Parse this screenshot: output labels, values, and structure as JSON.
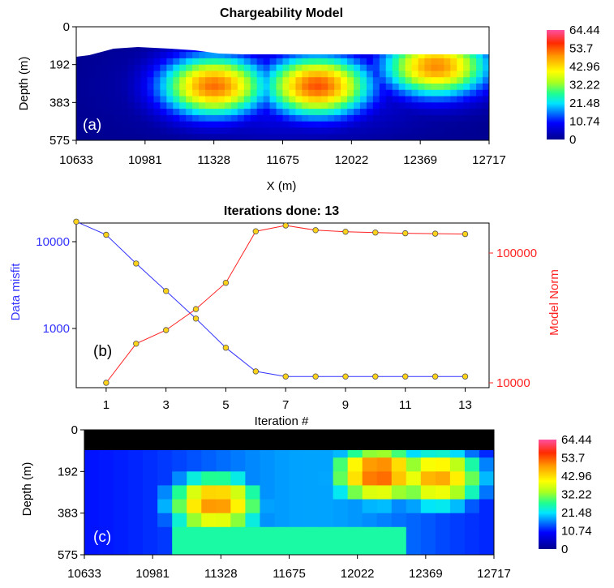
{
  "chart_data": [
    {
      "type": "heatmap",
      "panel_label": "(a)",
      "title": "Chargeability Model",
      "xlabel": "X (m)",
      "ylabel": "Depth (m)",
      "x_ticks": [
        "10633",
        "10981",
        "11328",
        "11675",
        "12022",
        "12369",
        "12717"
      ],
      "y_ticks": [
        "0",
        "192",
        "383",
        "575"
      ],
      "xlim": [
        10633,
        12717
      ],
      "ylim": [
        0,
        575
      ],
      "colorbar": {
        "ticks": [
          "64.44",
          "53.7",
          "42.96",
          "32.22",
          "21.48",
          "10.74",
          "0"
        ],
        "range": [
          0,
          64.44
        ]
      },
      "anomalies": [
        {
          "x": 11328,
          "depth": 300,
          "peak": 52
        },
        {
          "x": 11850,
          "depth": 300,
          "peak": 54
        },
        {
          "x": 12450,
          "depth": 200,
          "peak": 50
        }
      ]
    },
    {
      "type": "line",
      "panel_label": "(b)",
      "title": "Iterations done: 13",
      "xlabel": "Iteration #",
      "ylabel_left": "Data misfit",
      "ylabel_right": "Model Norm",
      "x_ticks": [
        "1",
        "3",
        "5",
        "7",
        "9",
        "11",
        "13"
      ],
      "y_ticks_left": [
        "10000",
        "1000"
      ],
      "y_ticks_right": [
        "100000",
        "10000"
      ],
      "y_scale": "log",
      "x": [
        0,
        1,
        2,
        3,
        4,
        5,
        6,
        7,
        8,
        9,
        10,
        11,
        12,
        13
      ],
      "series": [
        {
          "name": "Data misfit",
          "axis": "left",
          "color": "#3333ff",
          "values": [
            17000,
            12000,
            5600,
            2700,
            1300,
            600,
            320,
            280,
            280,
            280,
            280,
            280,
            280,
            280
          ]
        },
        {
          "name": "Model Norm",
          "axis": "right",
          "color": "#ff2222",
          "x": [
            1,
            2,
            3,
            4,
            5,
            6,
            7,
            8,
            9,
            10,
            11,
            12,
            13
          ],
          "values": [
            10000,
            20000,
            25500,
            37000,
            59000,
            147000,
            163000,
            150000,
            146000,
            144000,
            142000,
            141000,
            140000
          ]
        }
      ]
    },
    {
      "type": "heatmap",
      "panel_label": "(c)",
      "ylabel": "Depth (m)",
      "x_ticks": [
        "10633",
        "10981",
        "11328",
        "11675",
        "12022",
        "12369",
        "12717"
      ],
      "y_ticks": [
        "0",
        "192",
        "383",
        "575"
      ],
      "xlim": [
        10633,
        12717
      ],
      "ylim": [
        0,
        575
      ],
      "colorbar": {
        "ticks": [
          "64.44",
          "53.7",
          "42.96",
          "32.22",
          "21.48",
          "10.74",
          "0"
        ],
        "range": [
          0,
          64.44
        ]
      },
      "anomalies": [
        {
          "x": 11300,
          "depth": 340,
          "peak": 50
        },
        {
          "x": 12130,
          "depth": 200,
          "peak": 54
        },
        {
          "x": 12430,
          "depth": 220,
          "peak": 48
        }
      ]
    }
  ],
  "colors": {
    "data_misfit": "#3333ff",
    "model_norm": "#ff2222",
    "marker_fill": "#ffd21a"
  }
}
